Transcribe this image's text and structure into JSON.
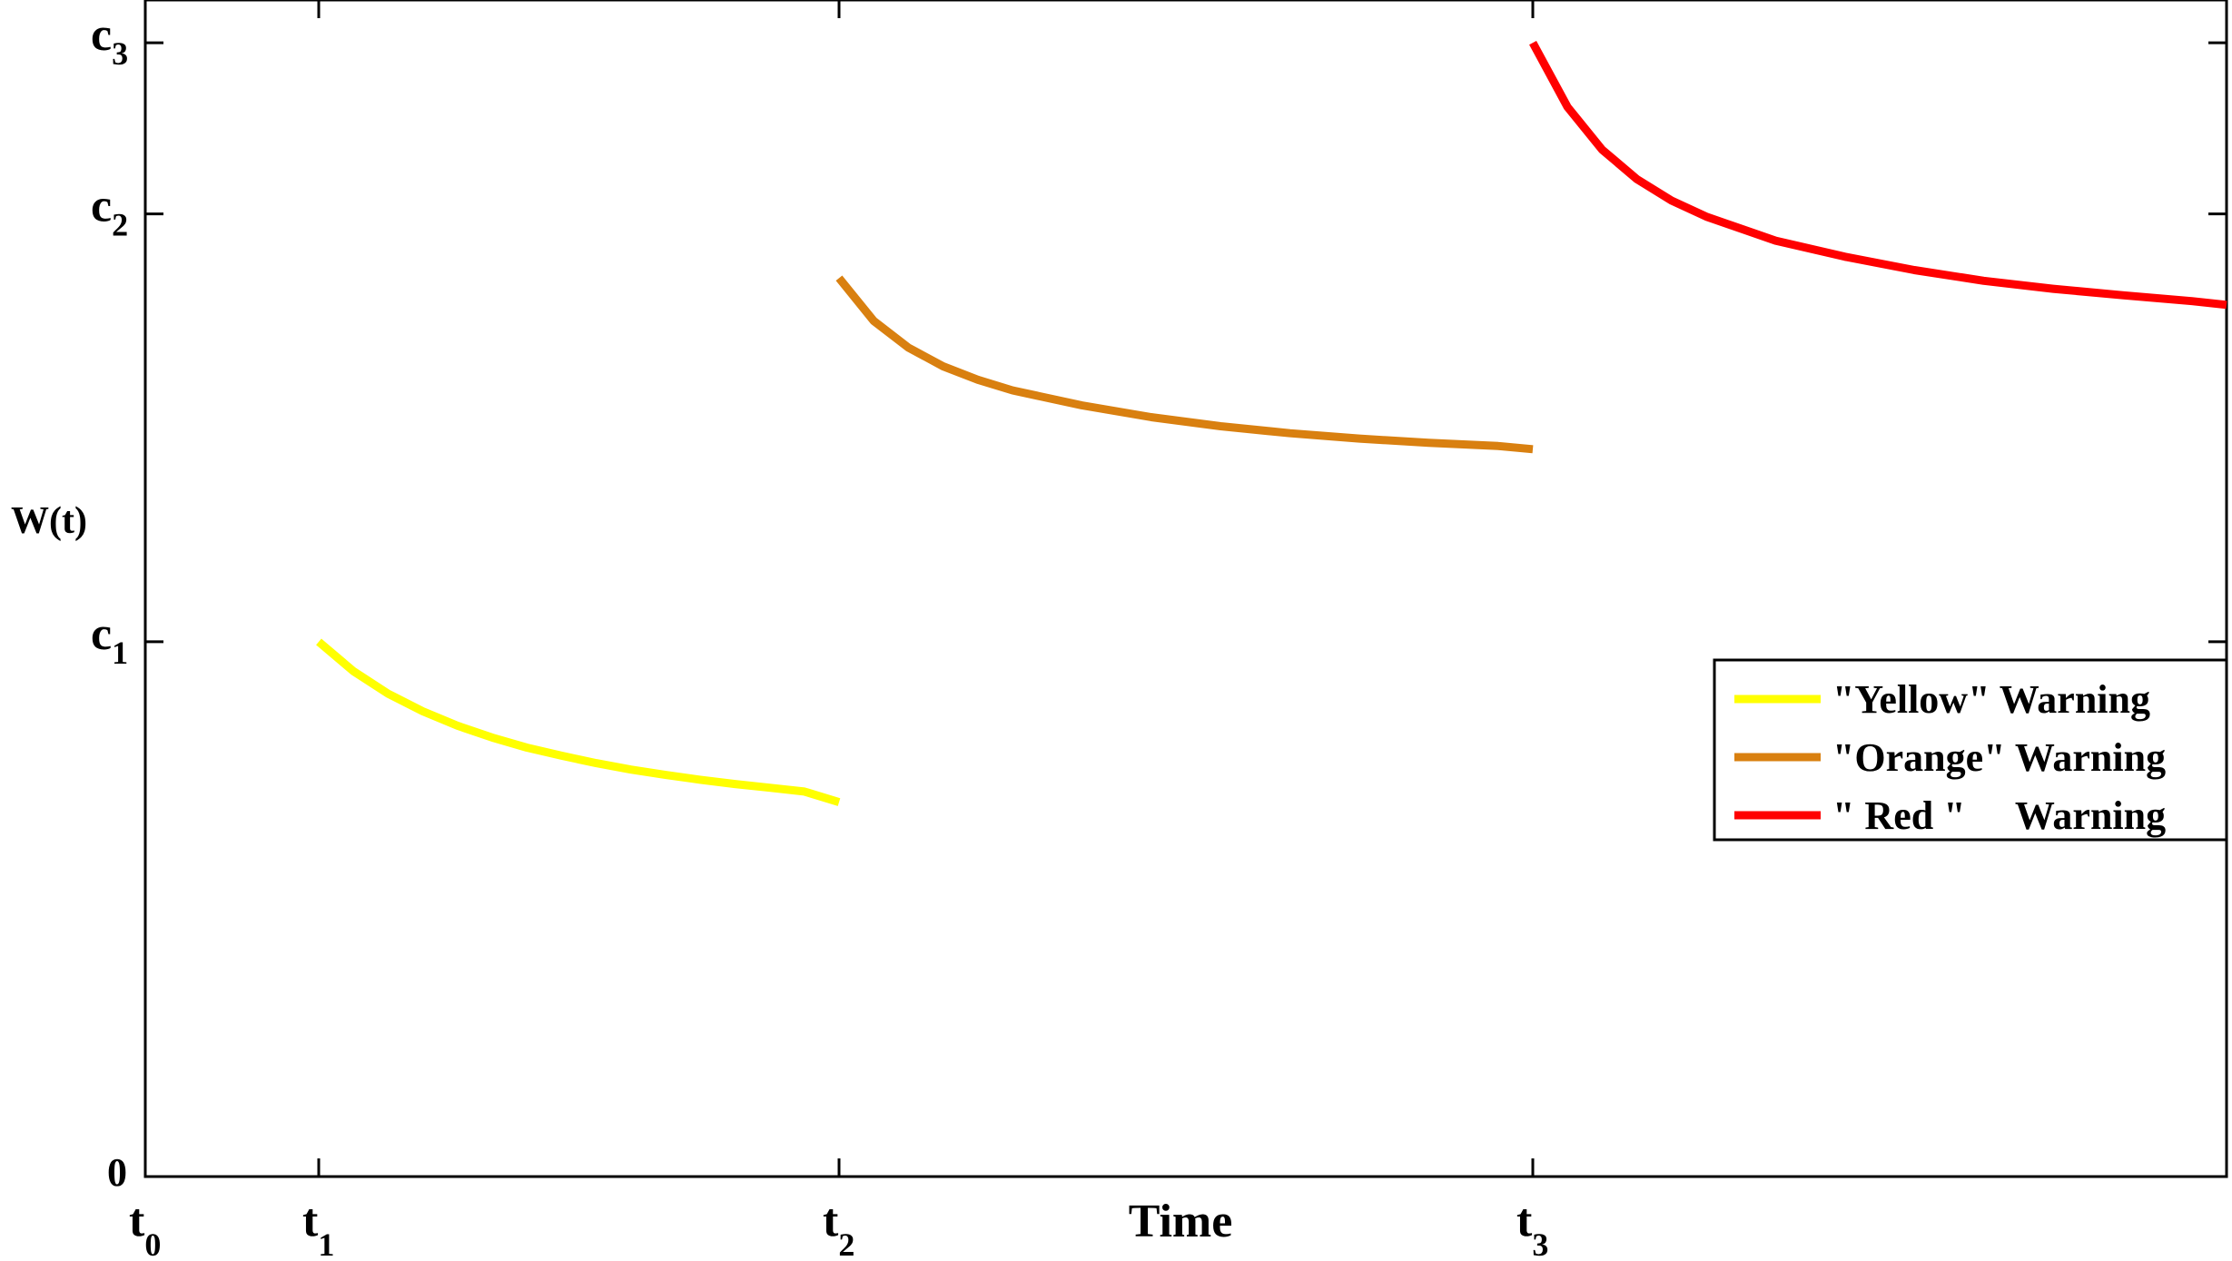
{
  "chart_data": {
    "type": "line",
    "title": "",
    "xlabel": "Time",
    "ylabel": "W(t)",
    "x_ticks": [
      {
        "base": "t",
        "sub": "0",
        "x": 0
      },
      {
        "base": "t",
        "sub": "1",
        "x": 1
      },
      {
        "base": "t",
        "sub": "2",
        "x": 4
      },
      {
        "base": "t",
        "sub": "3",
        "x": 8
      }
    ],
    "y_ticks": [
      {
        "base": "0",
        "sub": "",
        "y": 0
      },
      {
        "base": "c",
        "sub": "1",
        "y": 1
      },
      {
        "base": "c",
        "sub": "2",
        "y": 1.8
      },
      {
        "base": "c",
        "sub": "3",
        "y": 2.12
      }
    ],
    "xlim": [
      0,
      12
    ],
    "ylim": [
      0,
      2.2
    ],
    "grid": false,
    "legend_position": "right",
    "series": [
      {
        "name": "\"Yellow\" Warning",
        "color": "#ffff00",
        "x": [
          1.0,
          1.2,
          1.4,
          1.6,
          1.8,
          2.0,
          2.2,
          2.4,
          2.6,
          2.8,
          3.0,
          3.2,
          3.4,
          3.6,
          3.8,
          4.0
        ],
        "y": [
          1.0,
          0.945,
          0.903,
          0.87,
          0.843,
          0.821,
          0.802,
          0.787,
          0.773,
          0.761,
          0.751,
          0.742,
          0.734,
          0.727,
          0.72,
          0.7
        ]
      },
      {
        "name": "\"Orange\" Warning",
        "color": "#d98010",
        "x": [
          4.0,
          4.2,
          4.4,
          4.6,
          4.8,
          5.0,
          5.4,
          5.8,
          6.2,
          6.6,
          7.0,
          7.4,
          7.8,
          8.0
        ],
        "y": [
          1.68,
          1.6,
          1.55,
          1.515,
          1.49,
          1.47,
          1.442,
          1.42,
          1.403,
          1.39,
          1.38,
          1.372,
          1.366,
          1.36
        ]
      },
      {
        "name": "\" Red \"     Warning",
        "color": "#ff0000",
        "x": [
          8.0,
          8.2,
          8.4,
          8.6,
          8.8,
          9.0,
          9.4,
          9.8,
          10.2,
          10.6,
          11.0,
          11.4,
          11.8,
          12.0
        ],
        "y": [
          2.12,
          2.0,
          1.92,
          1.865,
          1.825,
          1.795,
          1.75,
          1.72,
          1.695,
          1.675,
          1.66,
          1.648,
          1.637,
          1.63
        ]
      }
    ]
  }
}
